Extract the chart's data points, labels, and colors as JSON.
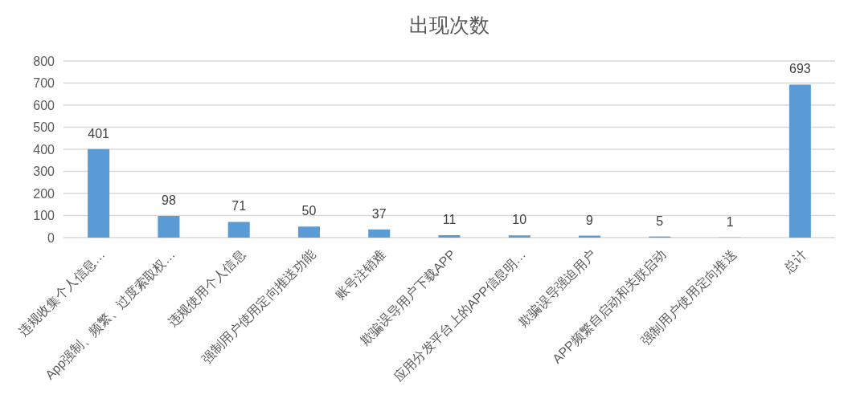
{
  "chart_data": {
    "type": "bar",
    "title": "出现次数",
    "categories": [
      "违规收集个人信息…",
      "App强制、频繁、过度索取权…",
      "违规使用个人信息",
      "强制用户使用定向推送功能",
      "账号注销难",
      "欺骗误导用户下载APP",
      "应用分发平台上的APP信息明…",
      "欺骗误导强迫用户",
      "APP频繁自启动和关联启动",
      "强制用户使用定向推送",
      "总计"
    ],
    "values": [
      401,
      98,
      71,
      50,
      37,
      11,
      10,
      9,
      5,
      1,
      693
    ],
    "color": "#5b9bd5",
    "ylim": [
      0,
      800
    ],
    "yticks": [
      0,
      100,
      200,
      300,
      400,
      500,
      600,
      700,
      800
    ],
    "grid": "y",
    "data_labels": true
  }
}
